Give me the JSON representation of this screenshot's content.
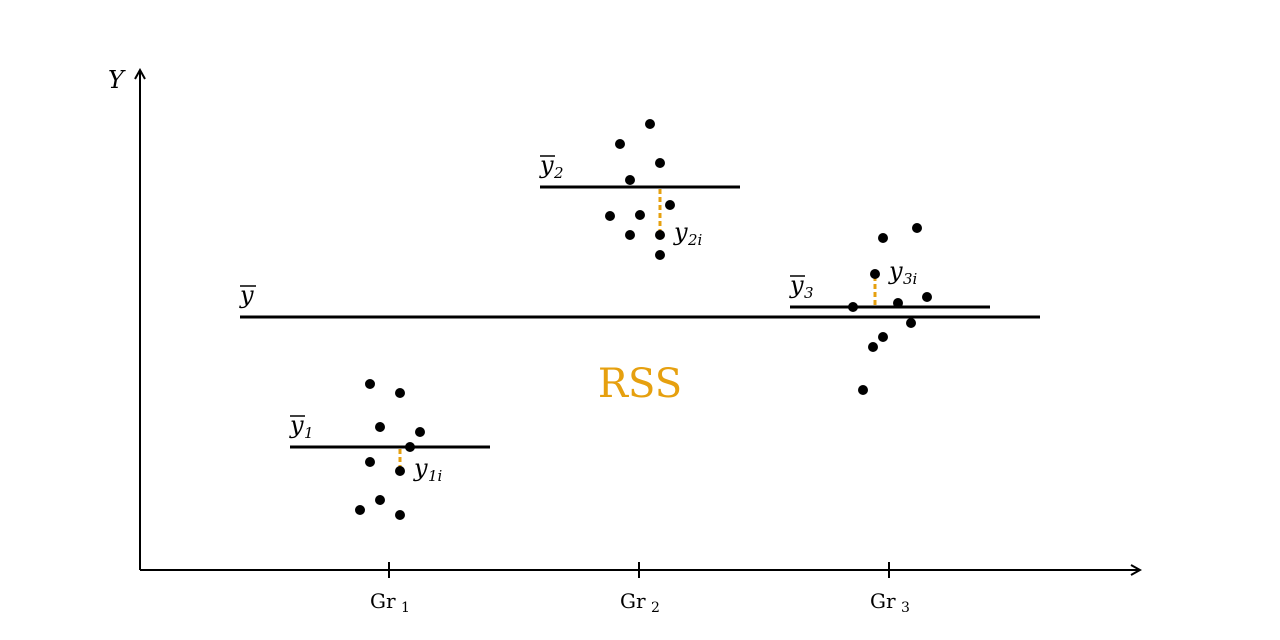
{
  "y_axis_label": "Y",
  "overall_mean_label": "y",
  "center_label": "RSS",
  "colors": {
    "ink": "#000000",
    "residual": "#E6A00F"
  },
  "groups": [
    {
      "tick_base": "Gr",
      "tick_sub": "1",
      "mean_base": "y",
      "mean_sub": "1",
      "point_base": "y",
      "point_sub": "1i"
    },
    {
      "tick_base": "Gr",
      "tick_sub": "2",
      "mean_base": "y",
      "mean_sub": "2",
      "point_base": "y",
      "point_sub": "2i"
    },
    {
      "tick_base": "Gr",
      "tick_sub": "3",
      "mean_base": "y",
      "mean_sub": "3",
      "point_base": "y",
      "point_sub": "3i"
    }
  ]
}
